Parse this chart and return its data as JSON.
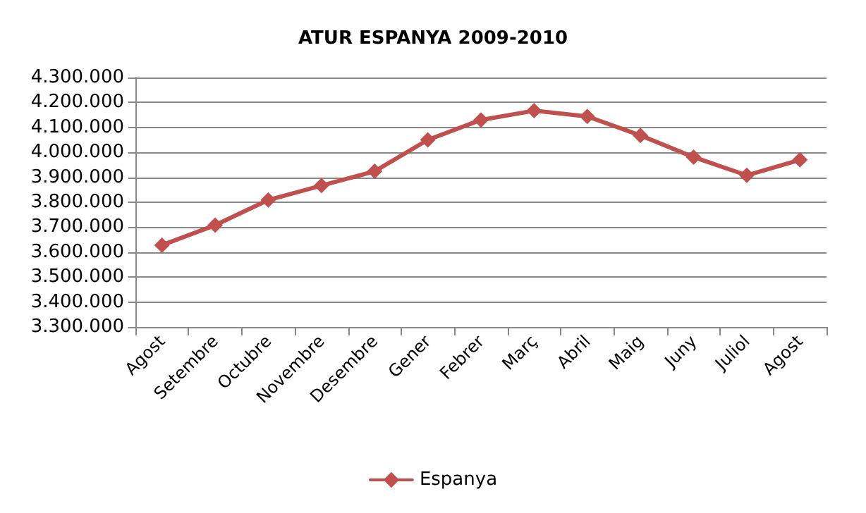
{
  "chart_data": {
    "type": "line",
    "title": "ATUR ESPANYA 2009-2010",
    "categories": [
      "Agost",
      "Setembre",
      "Octubre",
      "Novembre",
      "Desembre",
      "Gener",
      "Febrer",
      "Març",
      "Abril",
      "Maig",
      "Juny",
      "Juliol",
      "Agost"
    ],
    "series": [
      {
        "name": "Espanya",
        "color": "#c0504d",
        "values": [
          3628000,
          3708000,
          3809000,
          3867000,
          3924000,
          4050000,
          4130000,
          4167000,
          4144000,
          4068000,
          3981000,
          3908000,
          3970000
        ]
      }
    ],
    "ylim": [
      3300000,
      4300000
    ],
    "yticks": [
      {
        "value": 3300000,
        "label": "3.300.000"
      },
      {
        "value": 3400000,
        "label": "3.400.000"
      },
      {
        "value": 3500000,
        "label": "3.500.000"
      },
      {
        "value": 3600000,
        "label": "3.600.000"
      },
      {
        "value": 3700000,
        "label": "3.700.000"
      },
      {
        "value": 3800000,
        "label": "3.800.000"
      },
      {
        "value": 3900000,
        "label": "3.900.000"
      },
      {
        "value": 4000000,
        "label": "4.000.000"
      },
      {
        "value": 4100000,
        "label": "4.100.000"
      },
      {
        "value": 4200000,
        "label": "4.200.000"
      },
      {
        "value": 4300000,
        "label": "4.300.000"
      }
    ],
    "grid": "y",
    "legend": "bottom",
    "marker": "diamond",
    "line_style": "solid"
  }
}
